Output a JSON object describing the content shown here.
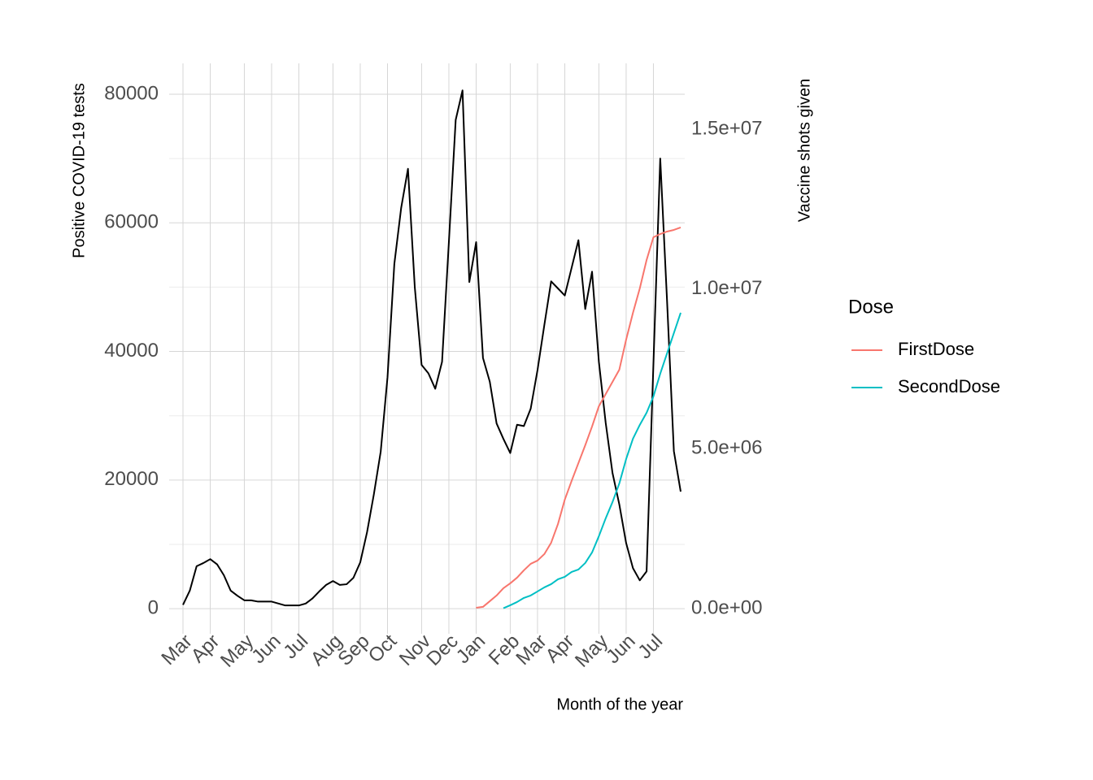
{
  "chart_data": {
    "type": "line",
    "x_title": "Month of the year",
    "y_title": "Positive COVID-19 tests",
    "y2_title": "Vaccine shots given",
    "legend_title": "Dose",
    "legend_position": "right",
    "grid": true,
    "categories": [
      "Mar",
      null,
      null,
      null,
      "Apr",
      null,
      null,
      null,
      null,
      "May",
      null,
      null,
      null,
      "Jun",
      null,
      null,
      null,
      "Jul",
      null,
      null,
      null,
      null,
      "Aug",
      null,
      null,
      null,
      "Sep",
      null,
      null,
      null,
      "Oct",
      null,
      null,
      null,
      null,
      "Nov",
      null,
      null,
      null,
      "Dec",
      null,
      null,
      null,
      "Jan",
      null,
      null,
      null,
      null,
      "Feb",
      null,
      null,
      null,
      "Mar",
      null,
      null,
      null,
      "Apr",
      null,
      null,
      null,
      null,
      "May",
      null,
      null,
      null,
      "Jun",
      null,
      null,
      null,
      "Jul",
      null,
      null,
      null,
      null
    ],
    "ylim": [
      -3900,
      84800
    ],
    "yticks": [
      0,
      20000,
      40000,
      60000,
      80000
    ],
    "y2lim": [
      -790000,
      17060000
    ],
    "y2ticks": [
      {
        "value": 0,
        "label": "0.0e+00"
      },
      {
        "value": 5000000,
        "label": "5.0e+06"
      },
      {
        "value": 10000000,
        "label": "1.0e+07"
      },
      {
        "value": 15000000,
        "label": "1.5e+07"
      }
    ],
    "series": [
      {
        "color": "#000000",
        "values": [
          600,
          2800,
          6600,
          7100,
          7700,
          6900,
          5200,
          2800,
          2000,
          1300,
          1300,
          1100,
          1100,
          1100,
          800,
          500,
          500,
          500,
          800,
          1600,
          2700,
          3700,
          4300,
          3700,
          3800,
          4800,
          7200,
          11900,
          17800,
          24400,
          36000,
          53600,
          62300,
          68400,
          50000,
          37900,
          36600,
          34200,
          38400,
          57000,
          76000,
          80600,
          50800,
          57000,
          39000,
          35300,
          28800,
          26400,
          24200,
          28600,
          28400,
          31100,
          37100,
          44100,
          50900,
          49800,
          48700,
          53000,
          57300,
          46600,
          52400,
          38400,
          28900,
          21100,
          16200,
          10200,
          6300,
          4400,
          5800,
          38000,
          70000,
          47900,
          24500,
          18200
        ]
      },
      {
        "name": "FirstDose",
        "color": "#f8766d",
        "axis": "y2",
        "values": [
          null,
          null,
          null,
          null,
          null,
          null,
          null,
          null,
          null,
          null,
          null,
          null,
          null,
          null,
          null,
          null,
          null,
          null,
          null,
          null,
          null,
          null,
          null,
          null,
          null,
          null,
          null,
          null,
          null,
          null,
          null,
          null,
          null,
          null,
          null,
          null,
          null,
          null,
          null,
          null,
          null,
          null,
          null,
          25000,
          51000,
          229000,
          407000,
          636000,
          788000,
          966000,
          1195000,
          1398000,
          1500000,
          1703000,
          2059000,
          2644000,
          3407000,
          3992000,
          4551000,
          5110000,
          5695000,
          6331000,
          6712000,
          7093000,
          7475000,
          8415000,
          9254000,
          10017000,
          10907000,
          11619000,
          11720000,
          11797000,
          11848000,
          11924000
        ]
      },
      {
        "name": "SecondDose",
        "color": "#00bfc4",
        "axis": "y2",
        "values": [
          null,
          null,
          null,
          null,
          null,
          null,
          null,
          null,
          null,
          null,
          null,
          null,
          null,
          null,
          null,
          null,
          null,
          null,
          null,
          null,
          null,
          null,
          null,
          null,
          null,
          null,
          null,
          null,
          null,
          null,
          null,
          null,
          null,
          null,
          null,
          null,
          null,
          null,
          null,
          null,
          null,
          null,
          null,
          null,
          null,
          null,
          null,
          10000,
          102000,
          203000,
          331000,
          407000,
          534000,
          661000,
          763000,
          915000,
          992000,
          1144000,
          1220000,
          1424000,
          1754000,
          2263000,
          2822000,
          3331000,
          3915000,
          4678000,
          5314000,
          5746000,
          6127000,
          6636000,
          7347000,
          7983000,
          8619000,
          9254000
        ]
      }
    ]
  }
}
